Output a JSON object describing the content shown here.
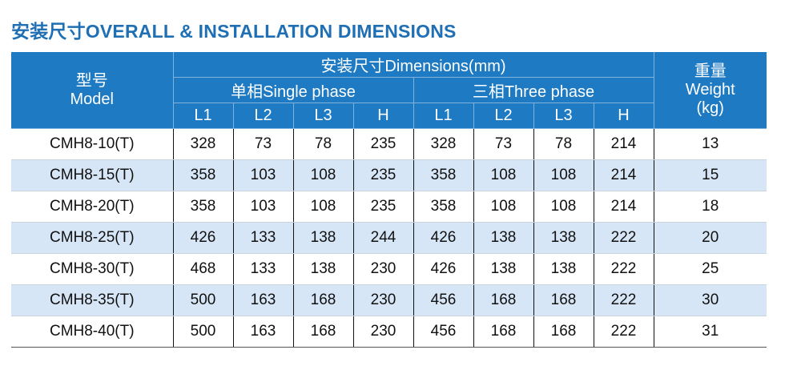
{
  "title": "安装尺寸OVERALL & INSTALLATION DIMENSIONS",
  "header": {
    "model_cn": "型号",
    "model_en": "Model",
    "dimensions": "安装尺寸Dimensions(mm)",
    "single_phase": "单相Single phase",
    "three_phase": "三相Three phase",
    "weight_cn": "重量",
    "weight_en": "Weight",
    "weight_unit": "(kg)",
    "cols": [
      "L1",
      "L2",
      "L3",
      "H",
      "L1",
      "L2",
      "L3",
      "H"
    ]
  },
  "rows": [
    [
      "CMH8-10(T)",
      "328",
      "73",
      "78",
      "235",
      "328",
      "73",
      "78",
      "214",
      "13"
    ],
    [
      "CMH8-15(T)",
      "358",
      "103",
      "108",
      "235",
      "358",
      "108",
      "108",
      "214",
      "15"
    ],
    [
      "CMH8-20(T)",
      "358",
      "103",
      "108",
      "235",
      "358",
      "108",
      "108",
      "214",
      "18"
    ],
    [
      "CMH8-25(T)",
      "426",
      "133",
      "138",
      "244",
      "426",
      "138",
      "138",
      "222",
      "20"
    ],
    [
      "CMH8-30(T)",
      "468",
      "133",
      "138",
      "230",
      "426",
      "138",
      "138",
      "222",
      "25"
    ],
    [
      "CMH8-35(T)",
      "500",
      "163",
      "168",
      "230",
      "456",
      "168",
      "168",
      "222",
      "30"
    ],
    [
      "CMH8-40(T)",
      "500",
      "163",
      "168",
      "230",
      "456",
      "168",
      "168",
      "222",
      "31"
    ]
  ]
}
